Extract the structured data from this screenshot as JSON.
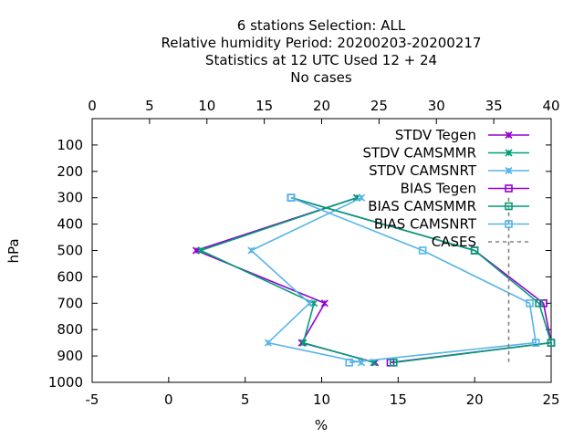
{
  "chart_data": {
    "type": "line",
    "title_lines": [
      "6 stations Selection: ALL",
      "Relative humidity  Period: 20200203-20200217",
      "Statistics at 12 UTC  Used  12 + 24",
      "No cases"
    ],
    "xlabel": "%",
    "ylabel": "hPa",
    "x_bottom": {
      "range": [
        -5,
        25
      ],
      "ticks": [
        -5,
        0,
        5,
        10,
        15,
        20,
        25
      ]
    },
    "x_top": {
      "range": [
        0,
        40
      ],
      "ticks": [
        0,
        5,
        10,
        15,
        20,
        25,
        30,
        35,
        40
      ]
    },
    "y": {
      "range": [
        1000,
        0
      ],
      "ticks": [
        100,
        200,
        300,
        400,
        500,
        600,
        700,
        800,
        900,
        1000
      ],
      "inverted": true
    },
    "legend_position": "top-right",
    "series": [
      {
        "name": "STDV Tegen",
        "color": "#9400d3",
        "marker": "x",
        "axis": "bottom",
        "points": [
          [
            12.3,
            300
          ],
          [
            1.8,
            500
          ],
          [
            10.2,
            700
          ],
          [
            8.7,
            850
          ],
          [
            13.5,
            925
          ]
        ]
      },
      {
        "name": "STDV CAMSMMR",
        "color": "#009e73",
        "marker": "x",
        "axis": "bottom",
        "points": [
          [
            12.3,
            300
          ],
          [
            2.1,
            500
          ],
          [
            9.5,
            700
          ],
          [
            8.8,
            850
          ],
          [
            13.4,
            925
          ]
        ]
      },
      {
        "name": "STDV CAMSNRT",
        "color": "#56b4e9",
        "marker": "x",
        "axis": "bottom",
        "points": [
          [
            12.6,
            300
          ],
          [
            5.4,
            500
          ],
          [
            9.2,
            700
          ],
          [
            6.5,
            850
          ],
          [
            12.6,
            925
          ]
        ]
      },
      {
        "name": "BIAS Tegen",
        "color": "#9400d3",
        "marker": "square",
        "axis": "bottom",
        "points": [
          [
            8.0,
            300
          ],
          [
            20.0,
            500
          ],
          [
            24.5,
            700
          ],
          [
            25.0,
            850
          ],
          [
            14.5,
            925
          ]
        ]
      },
      {
        "name": "BIAS CAMSMMR",
        "color": "#009e73",
        "marker": "square",
        "axis": "bottom",
        "points": [
          [
            8.0,
            300
          ],
          [
            20.0,
            500
          ],
          [
            24.2,
            700
          ],
          [
            25.0,
            850
          ],
          [
            14.7,
            925
          ]
        ]
      },
      {
        "name": "BIAS CAMSNRT",
        "color": "#56b4e9",
        "marker": "square",
        "axis": "bottom",
        "points": [
          [
            8.0,
            300
          ],
          [
            16.6,
            500
          ],
          [
            23.6,
            700
          ],
          [
            24.0,
            850
          ],
          [
            11.8,
            925
          ]
        ]
      },
      {
        "name": "CASES",
        "color": "#808080",
        "marker": "none",
        "dashed": true,
        "axis": "top",
        "points": [
          [
            36.3,
            300
          ],
          [
            36.3,
            925
          ]
        ]
      }
    ]
  }
}
